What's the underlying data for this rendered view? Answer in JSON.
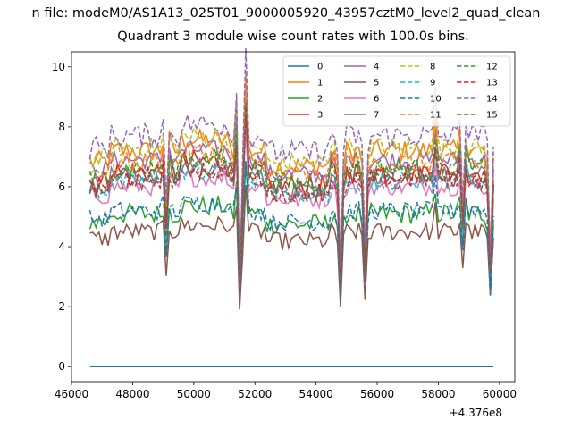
{
  "figure": {
    "suptitle": "n file: modeM0/AS1A13_025T01_9000005920_43957cztM0_level2_quad_clean",
    "title": "Quadrant 3 module wise count rates with 100.0s bins."
  },
  "chart_data": {
    "type": "line",
    "title": "Quadrant 3 module wise count rates with 100.0s bins.",
    "xlabel": "",
    "ylabel": "",
    "x_offset_label": "+4.376e8",
    "xlim": [
      46000,
      60500
    ],
    "ylim": [
      -0.5,
      10.5
    ],
    "xticks": [
      46000,
      48000,
      50000,
      52000,
      54000,
      56000,
      58000,
      60000
    ],
    "yticks": [
      0,
      2,
      4,
      6,
      8,
      10
    ],
    "grid": false,
    "legend": {
      "loc": "upper right",
      "ncol": 4
    },
    "series_points": 133,
    "x_start": 46600,
    "x_step": 100,
    "x_note": "x values are 46600..59800 step 100, relative to offset +4.376e8",
    "series": [
      {
        "name": "0",
        "color": "#1f77b4",
        "style": "solid",
        "base": 0.0,
        "noise": 0.0,
        "zero": true
      },
      {
        "name": "1",
        "color": "#ff7f0e",
        "style": "solid",
        "base": 7.2,
        "noise": 0.35
      },
      {
        "name": "2",
        "color": "#2ca02c",
        "style": "solid",
        "base": 5.1,
        "noise": 0.35
      },
      {
        "name": "3",
        "color": "#d62728",
        "style": "solid",
        "base": 6.5,
        "noise": 0.4
      },
      {
        "name": "4",
        "color": "#9467bd",
        "style": "solid",
        "base": 6.9,
        "noise": 0.3
      },
      {
        "name": "5",
        "color": "#8c564b",
        "style": "solid",
        "base": 4.5,
        "noise": 0.3
      },
      {
        "name": "6",
        "color": "#e377c2",
        "style": "solid",
        "base": 6.0,
        "noise": 0.3
      },
      {
        "name": "7",
        "color": "#7f7f7f",
        "style": "solid",
        "base": 6.4,
        "noise": 0.3
      },
      {
        "name": "8",
        "color": "#bcbd22",
        "style": "dashed",
        "base": 7.3,
        "noise": 0.35
      },
      {
        "name": "9",
        "color": "#17becf",
        "style": "dashed",
        "base": 6.2,
        "noise": 0.3
      },
      {
        "name": "10",
        "color": "#1f77b4",
        "style": "dashed",
        "base": 5.2,
        "noise": 0.3
      },
      {
        "name": "11",
        "color": "#ff7f0e",
        "style": "dashed",
        "base": 6.8,
        "noise": 0.35
      },
      {
        "name": "12",
        "color": "#2ca02c",
        "style": "dashed",
        "base": 6.6,
        "noise": 0.35
      },
      {
        "name": "13",
        "color": "#d62728",
        "style": "dashed",
        "base": 6.3,
        "noise": 0.35
      },
      {
        "name": "14",
        "color": "#9467bd",
        "style": "dashed",
        "base": 7.7,
        "noise": 0.4
      },
      {
        "name": "15",
        "color": "#8c564b",
        "style": "dashed",
        "base": 6.2,
        "noise": 0.3
      }
    ],
    "dips": [
      {
        "x": 49100,
        "factor": 0.7
      },
      {
        "x": 51500,
        "factor": 0.4
      },
      {
        "x": 54800,
        "factor": 0.45
      },
      {
        "x": 55600,
        "factor": 0.5
      },
      {
        "x": 58800,
        "factor": 0.75
      },
      {
        "x": 59700,
        "factor": 0.5
      }
    ],
    "spikes": [
      {
        "x": 51400,
        "add": 2.0
      },
      {
        "x": 51700,
        "add": 2.6
      },
      {
        "x": 57900,
        "add": 1.2
      }
    ]
  }
}
